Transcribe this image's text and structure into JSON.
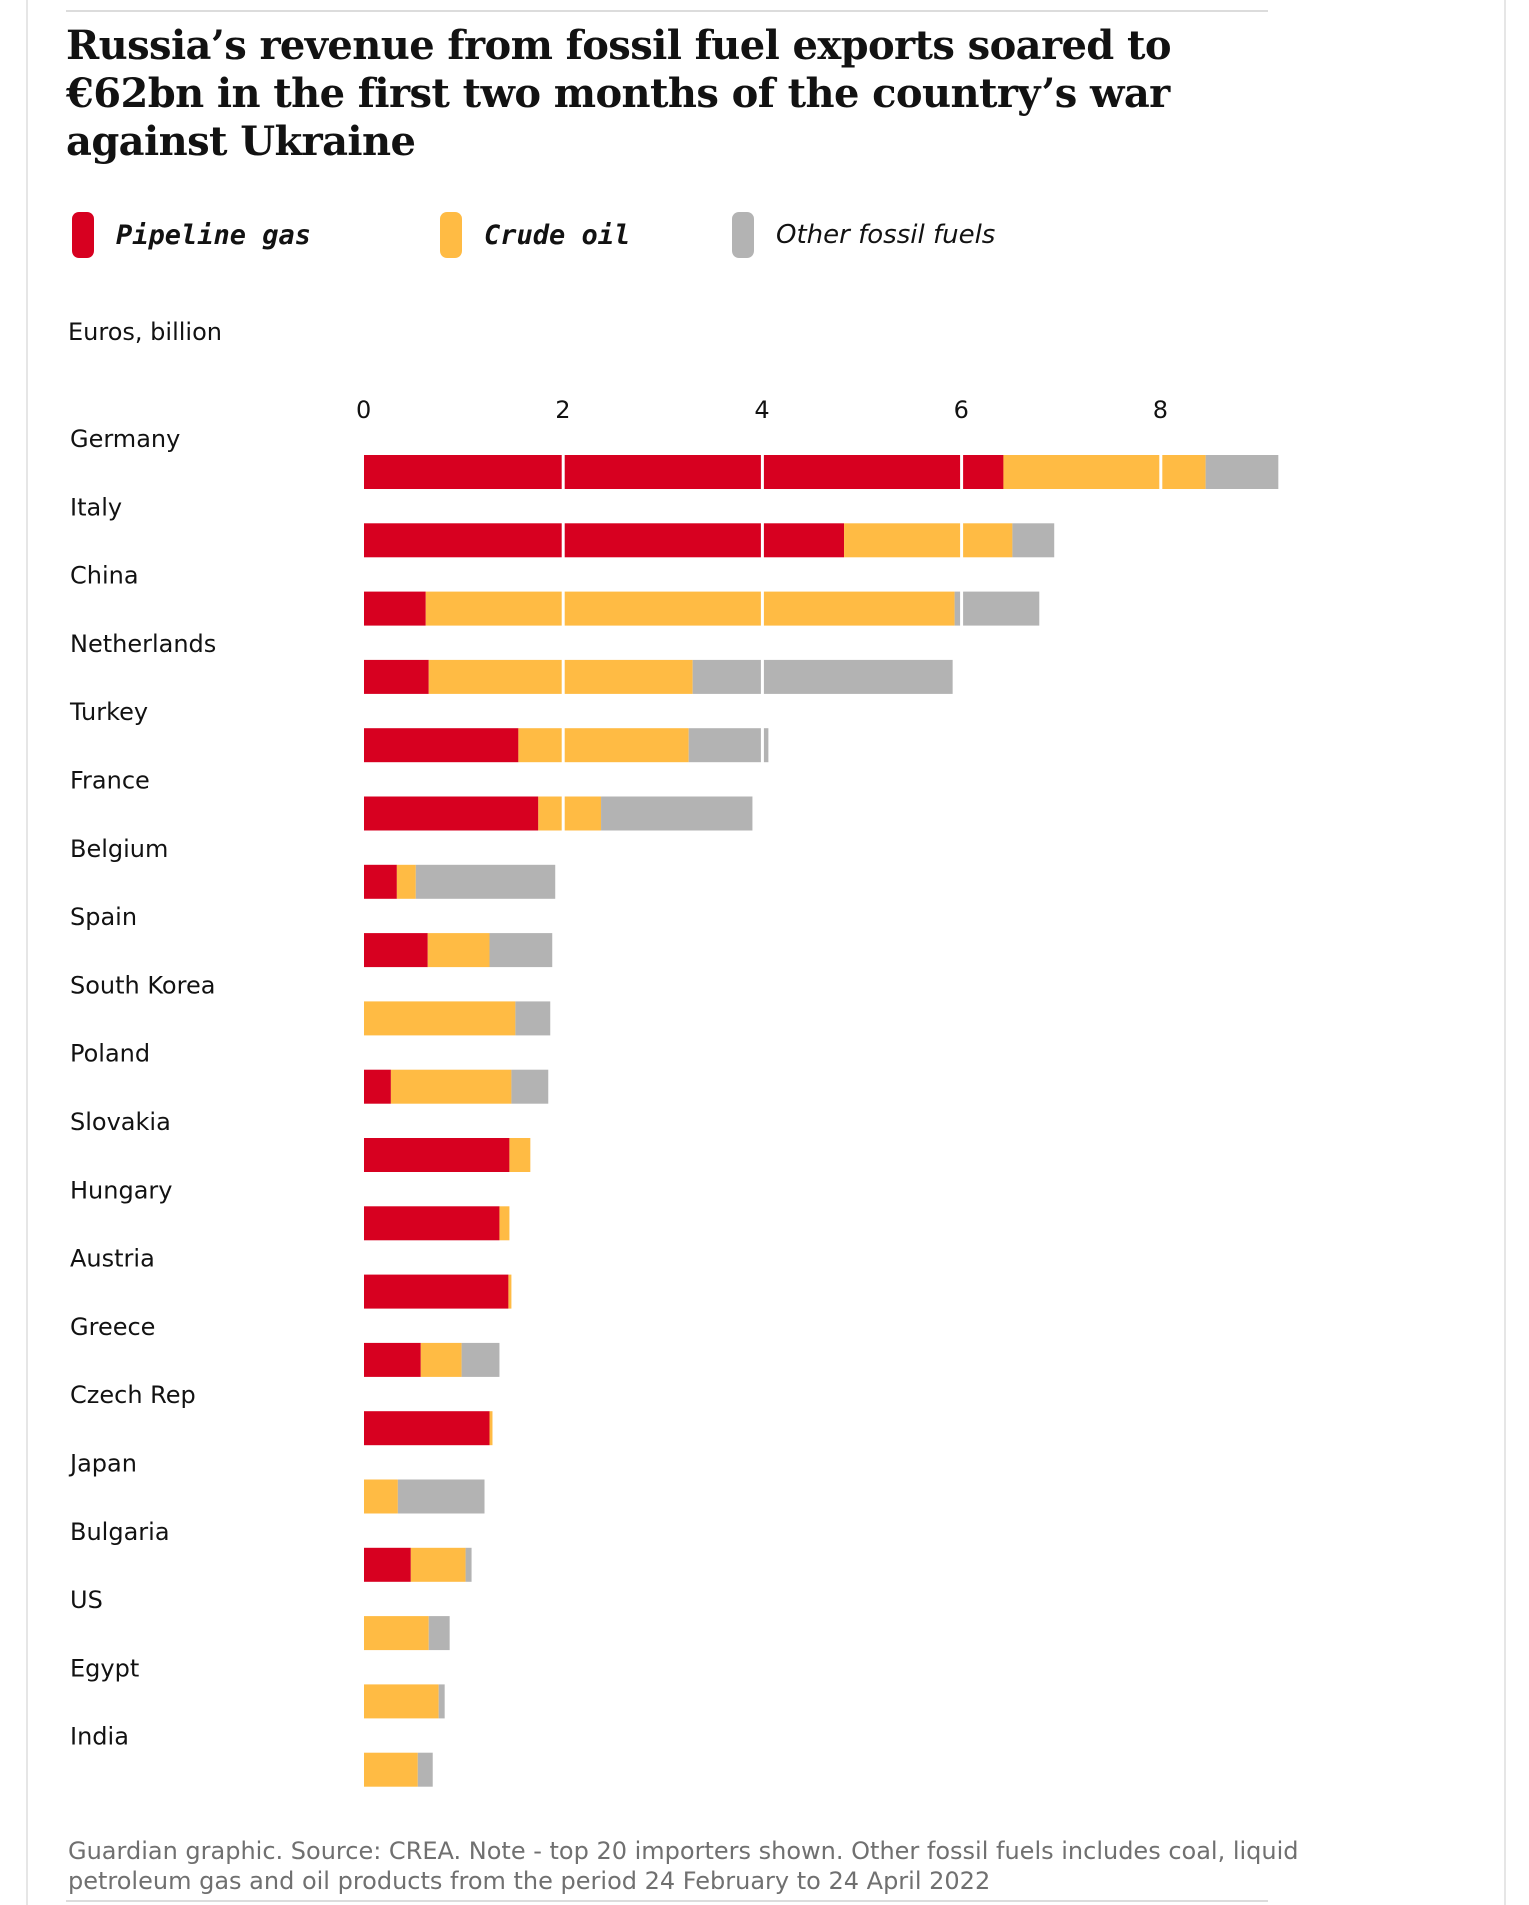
{
  "title": "Russia’s revenue from fossil fuel exports soared to €62bn in the first two months of the country’s war against Ukraine",
  "legend": [
    {
      "label": "Pipeline gas",
      "color": "#d70020"
    },
    {
      "label": "Crude oil",
      "color": "#ffbb44"
    },
    {
      "label": "Other fossil fuels",
      "color": "#b3b3b3"
    }
  ],
  "unit_label": "Euros, billion",
  "footnote": "Guardian graphic. Source: CREA. Note - top 20 importers shown. Other fossil fuels includes coal, liquid petroleum gas and oil products from the period 24 February to 24 April 2022",
  "chart_data": {
    "type": "bar",
    "orientation": "horizontal",
    "stacked": true,
    "title": "Russia’s revenue from fossil fuel exports soared to €62bn in the first two months of the country’s war against Ukraine",
    "xlabel": "Euros, billion",
    "ylabel": "",
    "xlim": [
      0,
      9.1
    ],
    "xticks": [
      "0",
      "2",
      "4",
      "6",
      "8"
    ],
    "grid": true,
    "categories": [
      "Germany",
      "Italy",
      "China",
      "Netherlands",
      "Turkey",
      "France",
      "Belgium",
      "Spain",
      "South Korea",
      "Poland",
      "Slovakia",
      "Hungary",
      "Austria",
      "Greece",
      "Czech Rep",
      "Japan",
      "Bulgaria",
      "US",
      "Egypt",
      "India"
    ],
    "series": [
      {
        "name": "Pipeline gas",
        "color": "#d70020",
        "values": [
          6.42,
          4.82,
          0.62,
          0.65,
          1.55,
          1.75,
          0.33,
          0.64,
          0.0,
          0.27,
          1.46,
          1.36,
          1.45,
          0.57,
          1.26,
          0.0,
          0.47,
          0.0,
          0.0,
          0.0
        ]
      },
      {
        "name": "Crude oil",
        "color": "#ffbb44",
        "values": [
          2.03,
          1.69,
          5.31,
          2.65,
          1.71,
          0.63,
          0.19,
          0.62,
          1.52,
          1.21,
          0.21,
          0.1,
          0.03,
          0.41,
          0.03,
          0.34,
          0.55,
          0.65,
          0.75,
          0.54
        ]
      },
      {
        "name": "Other fossil fuels",
        "color": "#b3b3b3",
        "values": [
          0.73,
          0.42,
          0.85,
          2.61,
          0.8,
          1.52,
          1.4,
          0.63,
          0.35,
          0.37,
          0.0,
          0.0,
          0.0,
          0.38,
          0.0,
          0.87,
          0.06,
          0.21,
          0.06,
          0.15
        ]
      }
    ]
  }
}
